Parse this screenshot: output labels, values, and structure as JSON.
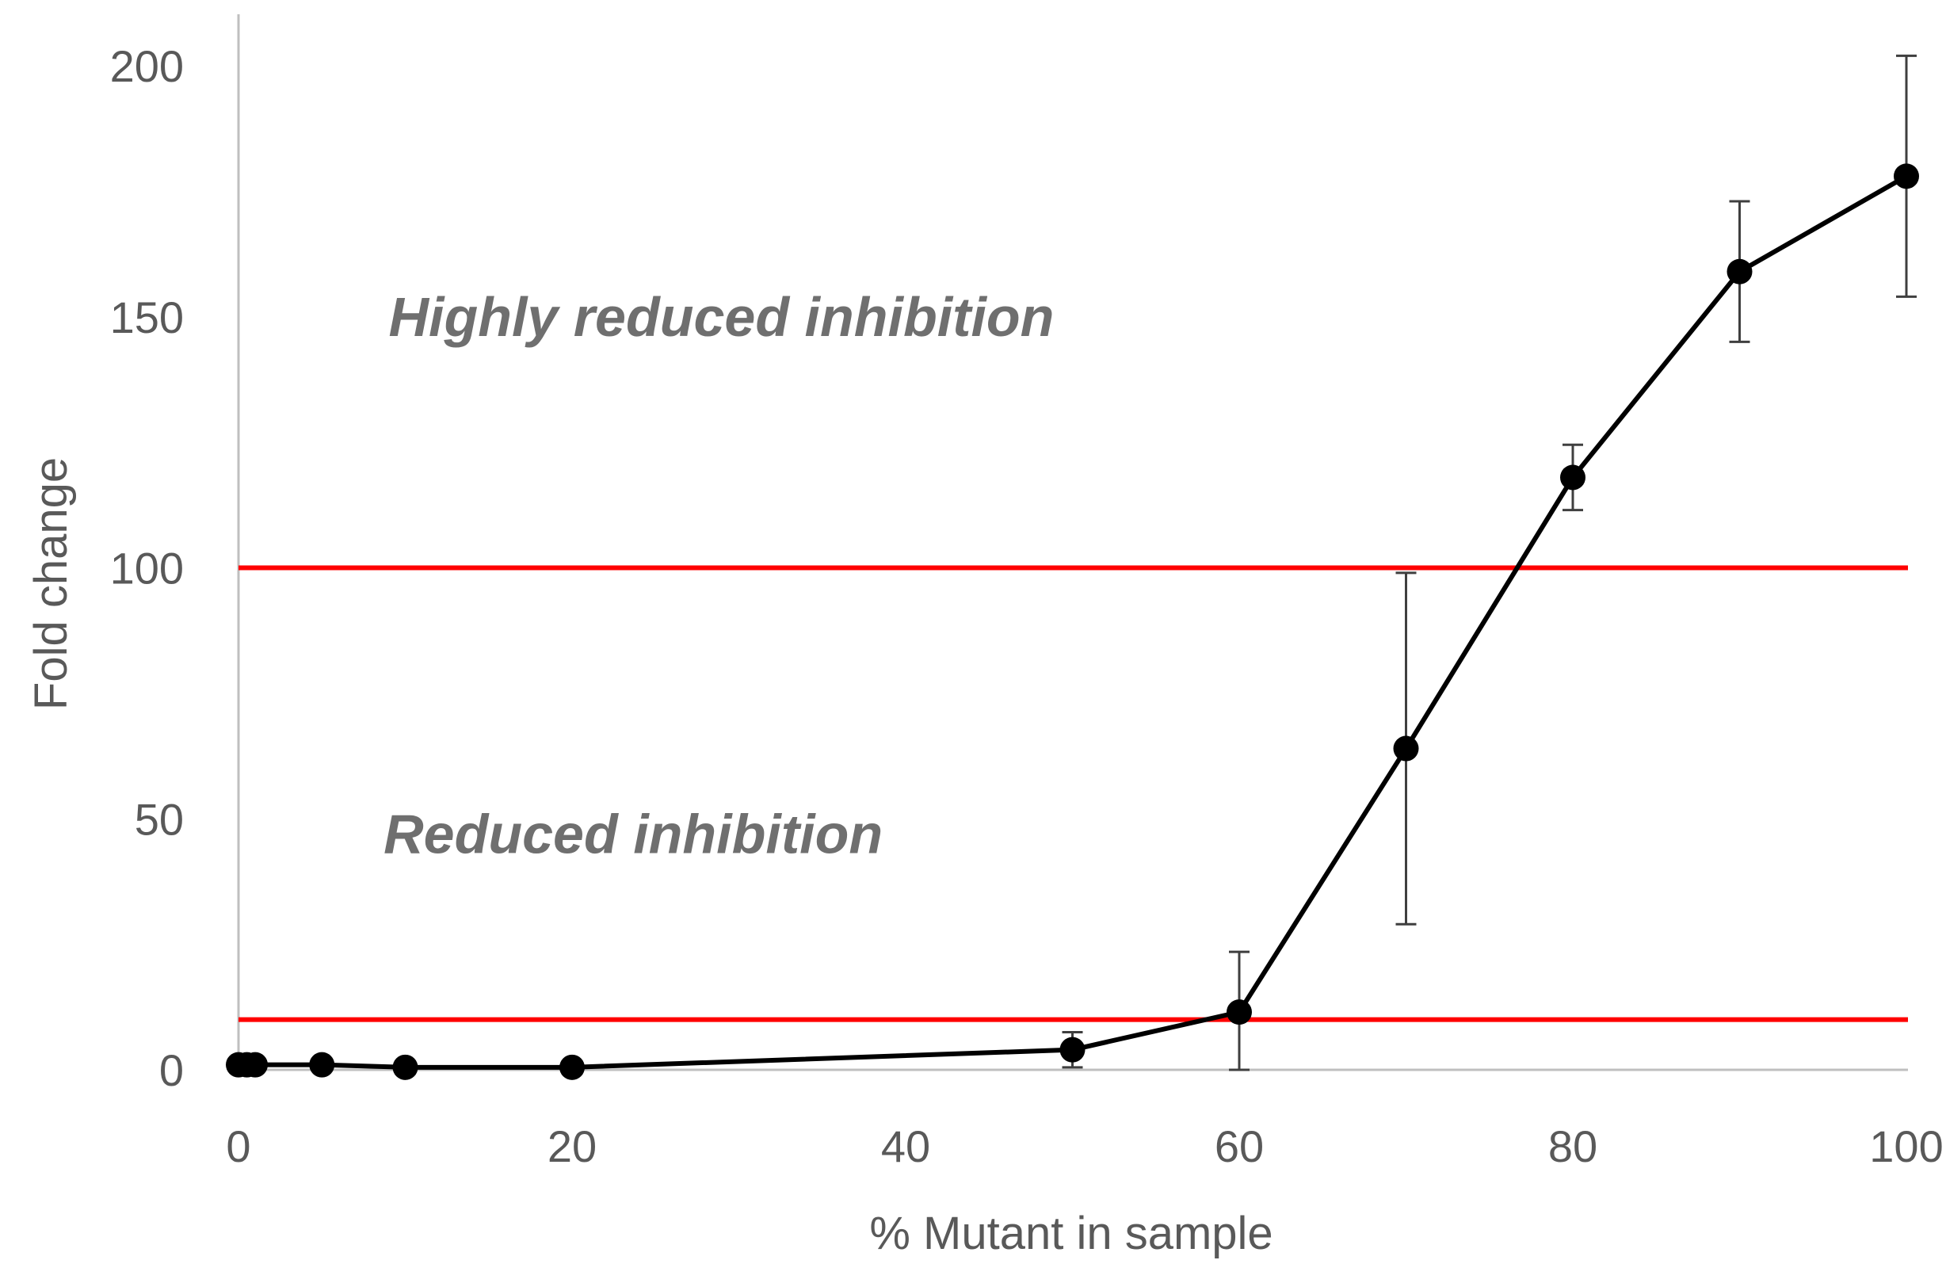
{
  "chart_data": {
    "type": "line",
    "title": "",
    "xlabel": "% Mutant in sample",
    "ylabel": "Fold change",
    "xlim": [
      0,
      100
    ],
    "ylim": [
      0,
      200
    ],
    "x_ticks": [
      0,
      20,
      40,
      60,
      80,
      100
    ],
    "y_ticks": [
      0,
      50,
      100,
      150,
      200
    ],
    "x_tick_labels": [
      "0",
      "20",
      "40",
      "60",
      "80",
      "100"
    ],
    "y_tick_labels": [
      "0",
      "50",
      "100",
      "150",
      "200"
    ],
    "grid": false,
    "legend": "none",
    "series": [
      {
        "name": "Fold change",
        "color": "#000000",
        "x": [
          0,
          0.5,
          1,
          5,
          10,
          20,
          50,
          60,
          70,
          80,
          90,
          100
        ],
        "values": [
          1,
          1,
          1,
          1,
          0.5,
          0.5,
          4,
          11.5,
          64,
          118,
          159,
          178
        ],
        "error_plus": [
          0,
          0,
          0,
          0,
          0,
          0,
          3.5,
          12,
          35,
          6.5,
          14,
          24
        ],
        "error_minus": [
          0,
          0,
          0,
          0,
          0,
          0,
          3.5,
          11.5,
          35,
          6.5,
          14,
          24
        ]
      }
    ],
    "reference_lines": [
      {
        "y": 10,
        "color": "#ff0000"
      },
      {
        "y": 100,
        "color": "#ff0000"
      }
    ],
    "annotations": [
      {
        "text": "Highly reduced inhibition",
        "x": 9,
        "y": 150
      },
      {
        "text": "Reduced inhibition",
        "x": 8.7,
        "y": 47
      }
    ],
    "colors": {
      "line": "#000000",
      "reference": "#ff0000",
      "axis": "#bfbfbf",
      "errorbar": "#3f3f3f",
      "text": "#595959",
      "annotation": "#6f6f6f"
    }
  }
}
